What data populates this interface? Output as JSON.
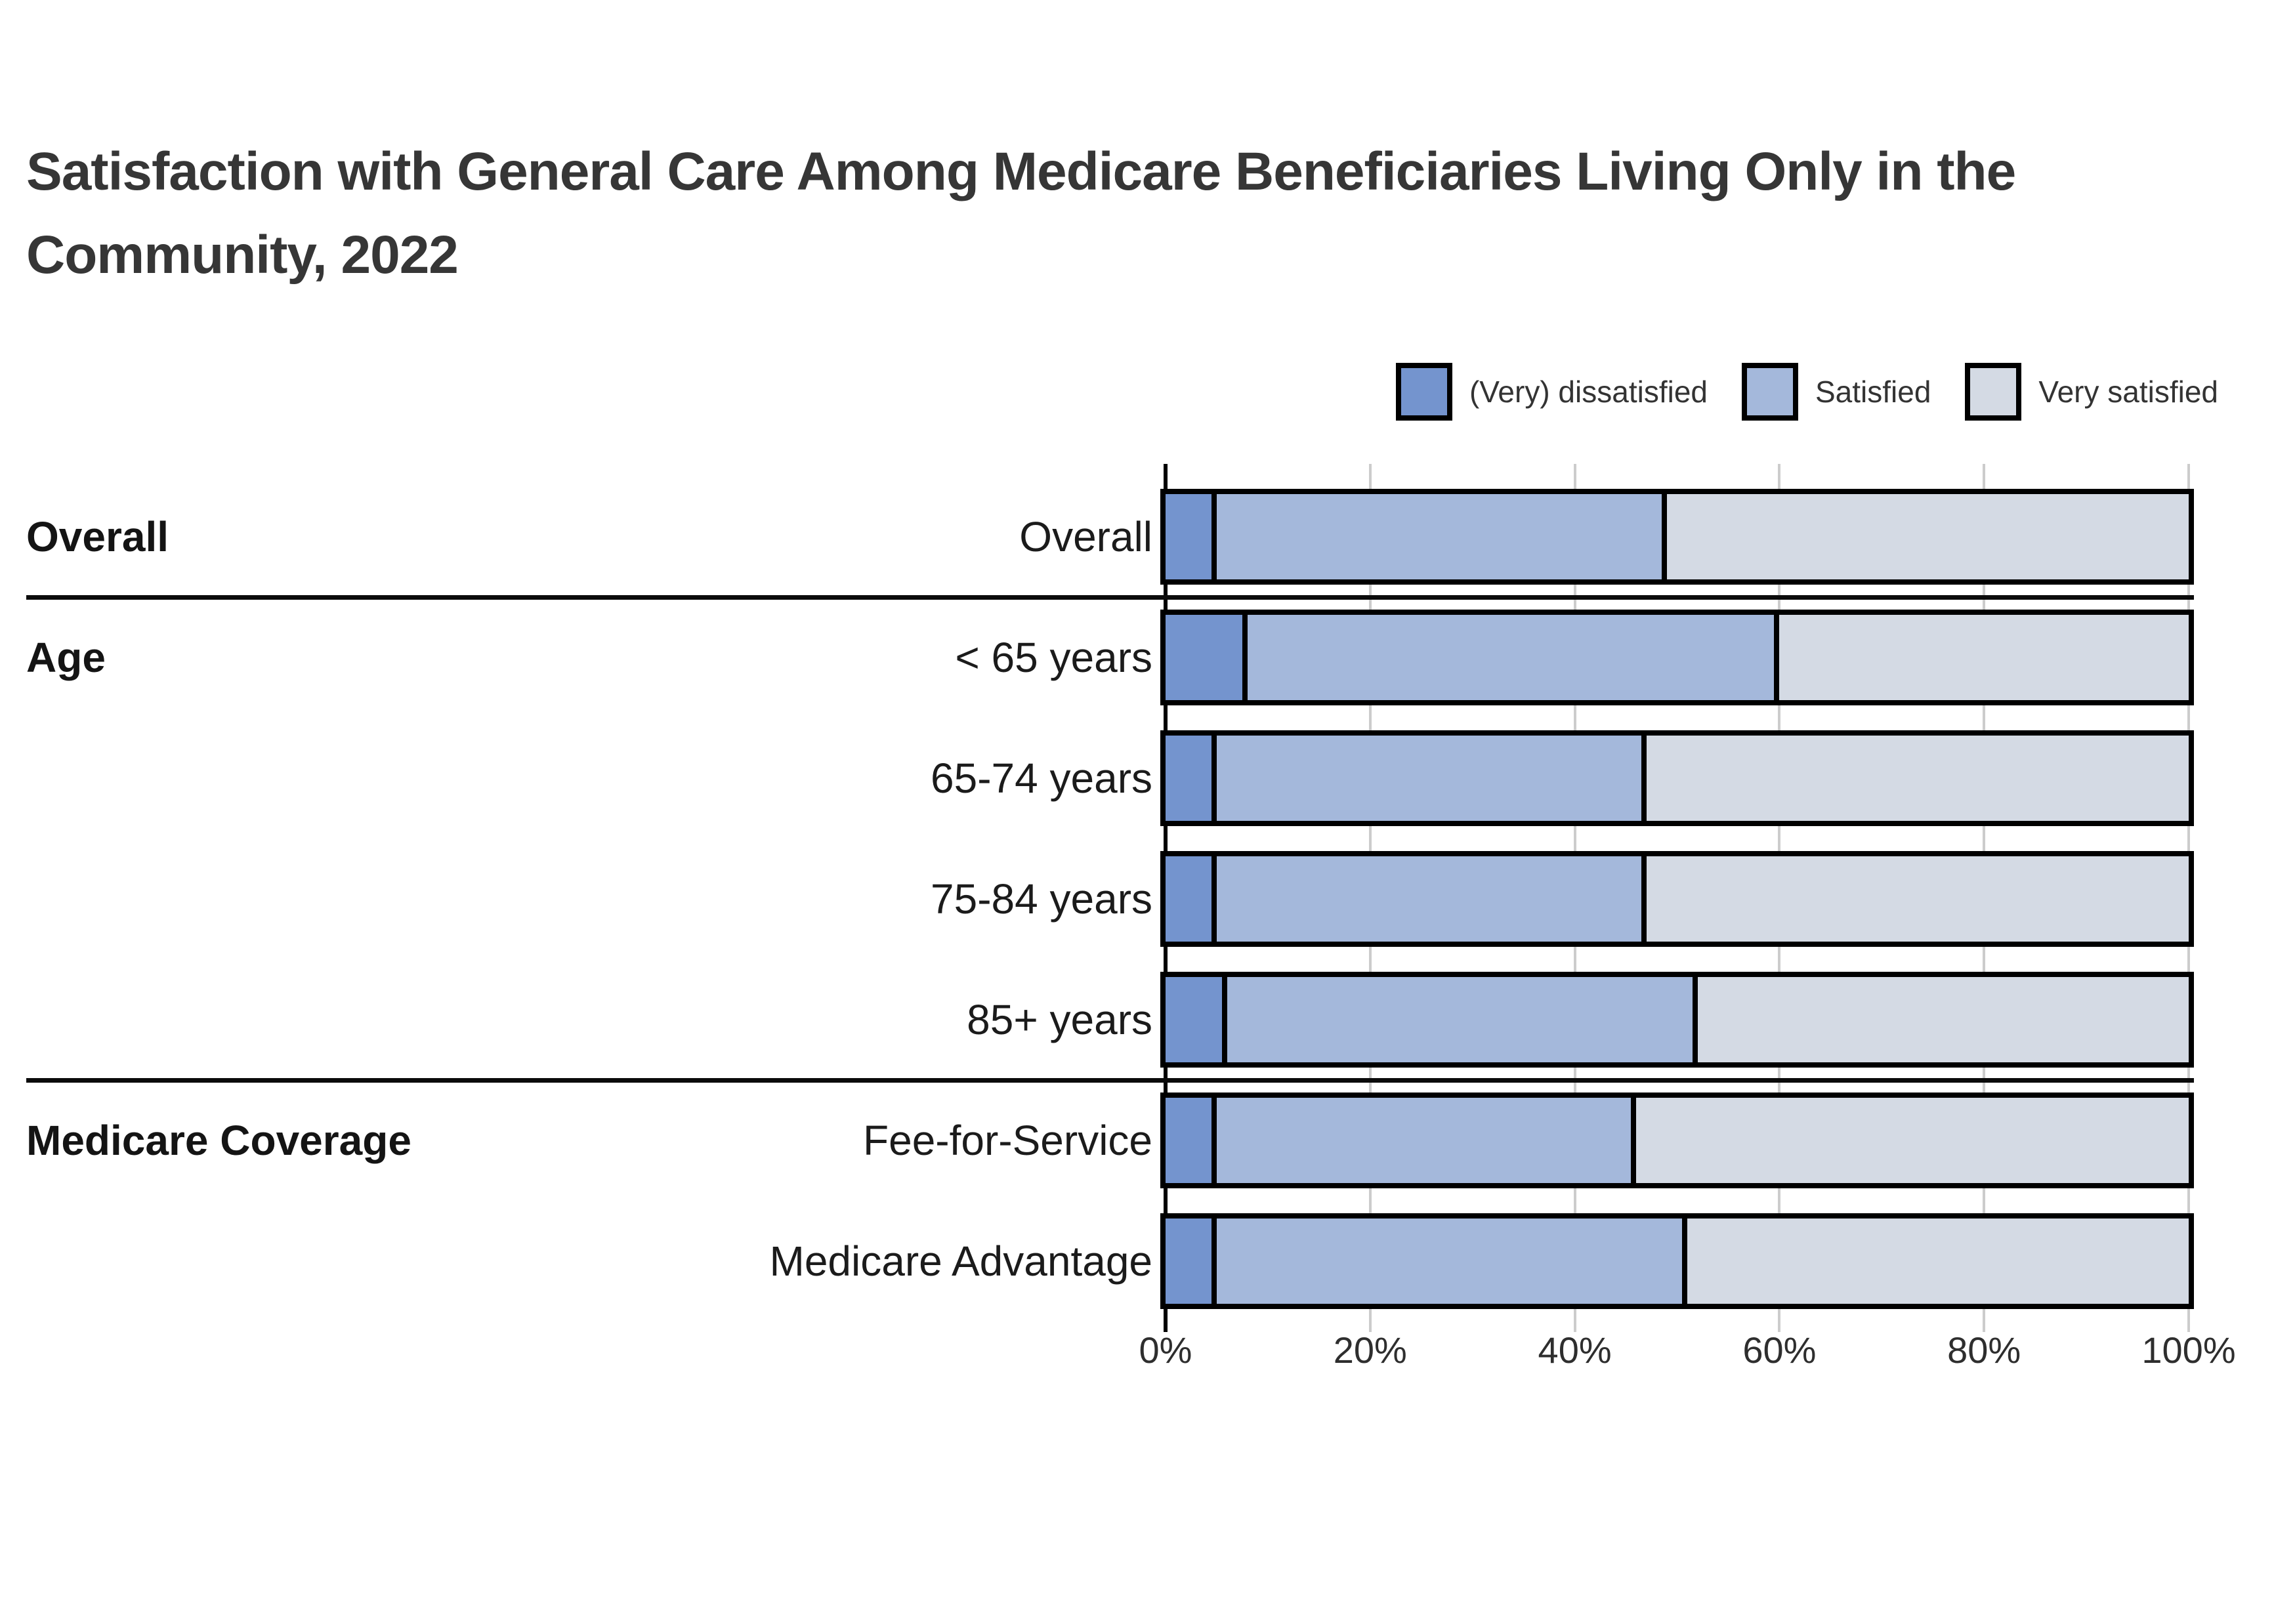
{
  "title": {
    "line1": "Satisfaction with General Care Among Medicare Beneficiaries Living Only in the",
    "line2": "Community, 2022"
  },
  "legend": {
    "items": [
      {
        "label": "(Very) dissatisfied",
        "color": "#7494CE"
      },
      {
        "label": "Satisfied",
        "color": "#A4B8DB"
      },
      {
        "label": "Very satisfied",
        "color": "#D4DAE4"
      }
    ]
  },
  "chart_data": {
    "type": "bar",
    "orientation": "horizontal",
    "stacked": true,
    "title": "Satisfaction with General Care Among Medicare Beneficiaries Living Only in the Community, 2022",
    "unit": "percent",
    "series": [
      {
        "name": "(Very) dissatisfied",
        "color": "#7494CE"
      },
      {
        "name": "Satisfied",
        "color": "#A4B8DB"
      },
      {
        "name": "Very satisfied",
        "color": "#D4DAE4"
      }
    ],
    "groups": [
      {
        "label": "Overall",
        "rows": [
          {
            "label": "Overall",
            "values": [
              5,
              44,
              51
            ]
          }
        ]
      },
      {
        "label": "Age",
        "rows": [
          {
            "label": "< 65 years",
            "values": [
              8,
              52,
              40
            ]
          },
          {
            "label": "65-74 years",
            "values": [
              5,
              42,
              53
            ]
          },
          {
            "label": "75-84 years",
            "values": [
              5,
              42,
              53
            ]
          },
          {
            "label": "85+ years",
            "values": [
              6,
              46,
              48
            ]
          }
        ]
      },
      {
        "label": "Medicare Coverage",
        "rows": [
          {
            "label": "Fee-for-Service",
            "values": [
              5,
              41,
              54
            ]
          },
          {
            "label": "Medicare Advantage",
            "values": [
              5,
              46,
              49
            ]
          }
        ]
      }
    ],
    "x_axis": {
      "ticks": [
        "0%",
        "20%",
        "40%",
        "60%",
        "80%",
        "100%"
      ],
      "min": 0,
      "max": 100,
      "gridlines": true,
      "gridline_color": "#cccccc",
      "zero_line_color": "#000000"
    },
    "legend_position": "top-right",
    "bar_outline_color": "#000000"
  }
}
